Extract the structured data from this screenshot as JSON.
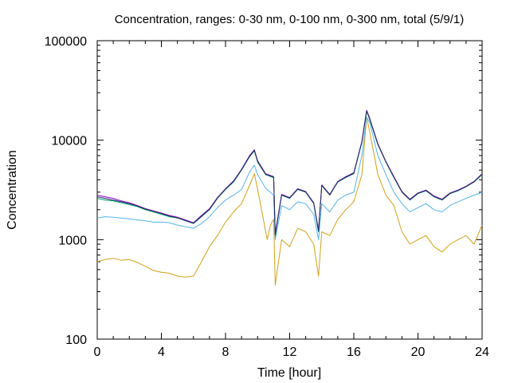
{
  "chart_data": {
    "type": "line",
    "title": "Concentration, ranges: 0-30 nm, 0-100 nm, 0-300 nm, total (5/9/1)",
    "xlabel": "Time [hour]",
    "ylabel": "Concentration",
    "xlim": [
      0,
      24
    ],
    "ylim": [
      100,
      100000
    ],
    "yscale": "log",
    "grid": false,
    "legend": "none",
    "xticks": [
      0,
      4,
      8,
      12,
      16,
      20,
      24
    ],
    "xtick_labels": [
      "0",
      "4",
      "8",
      "12",
      "16",
      "20",
      "24"
    ],
    "yticks": [
      100,
      1000,
      10000,
      100000
    ],
    "ytick_labels": [
      "100",
      "1000",
      "10000",
      "100000"
    ],
    "series": [
      {
        "color": "#d4a017",
        "points": [
          [
            0,
            600
          ],
          [
            0.5,
            630
          ],
          [
            1,
            650
          ],
          [
            1.5,
            620
          ],
          [
            2,
            630
          ],
          [
            2.5,
            590
          ],
          [
            3,
            540
          ],
          [
            3.5,
            490
          ],
          [
            4,
            470
          ],
          [
            4.5,
            460
          ],
          [
            5,
            430
          ],
          [
            5.5,
            420
          ],
          [
            6,
            430
          ],
          [
            6.5,
            600
          ],
          [
            7,
            850
          ],
          [
            7.5,
            1100
          ],
          [
            8,
            1500
          ],
          [
            8.5,
            1900
          ],
          [
            9,
            2300
          ],
          [
            9.5,
            3500
          ],
          [
            9.8,
            4600
          ],
          [
            10,
            3200
          ],
          [
            10.3,
            1800
          ],
          [
            10.6,
            1000
          ],
          [
            10.8,
            1400
          ],
          [
            11,
            1600
          ],
          [
            11.1,
            350
          ],
          [
            11.5,
            1000
          ],
          [
            12,
            850
          ],
          [
            12.5,
            1300
          ],
          [
            13,
            1200
          ],
          [
            13.5,
            900
          ],
          [
            13.8,
            430
          ],
          [
            14,
            1200
          ],
          [
            14.5,
            1100
          ],
          [
            15,
            1600
          ],
          [
            15.5,
            2000
          ],
          [
            16,
            2400
          ],
          [
            16.5,
            4500
          ],
          [
            16.8,
            17000
          ],
          [
            17,
            12000
          ],
          [
            17.5,
            4500
          ],
          [
            18,
            2800
          ],
          [
            18.5,
            2200
          ],
          [
            19,
            1200
          ],
          [
            19.5,
            900
          ],
          [
            20,
            1000
          ],
          [
            20.5,
            1100
          ],
          [
            21,
            850
          ],
          [
            21.5,
            750
          ],
          [
            22,
            900
          ],
          [
            22.5,
            1000
          ],
          [
            23,
            1100
          ],
          [
            23.5,
            900
          ],
          [
            24,
            1400
          ]
        ]
      },
      {
        "color": "#56b4e9",
        "points": [
          [
            0,
            1650
          ],
          [
            0.5,
            1700
          ],
          [
            1,
            1680
          ],
          [
            1.5,
            1650
          ],
          [
            2,
            1620
          ],
          [
            2.5,
            1580
          ],
          [
            3,
            1550
          ],
          [
            3.5,
            1500
          ],
          [
            4,
            1500
          ],
          [
            4.5,
            1480
          ],
          [
            5,
            1400
          ],
          [
            5.5,
            1350
          ],
          [
            6,
            1300
          ],
          [
            6.5,
            1450
          ],
          [
            7,
            1700
          ],
          [
            7.5,
            2100
          ],
          [
            8,
            2500
          ],
          [
            8.5,
            2800
          ],
          [
            9,
            3200
          ],
          [
            9.5,
            4800
          ],
          [
            9.8,
            5600
          ],
          [
            10,
            4500
          ],
          [
            10.5,
            3300
          ],
          [
            11,
            2800
          ],
          [
            11.1,
            1000
          ],
          [
            11.5,
            2200
          ],
          [
            12,
            2000
          ],
          [
            12.5,
            2400
          ],
          [
            13,
            2300
          ],
          [
            13.5,
            1800
          ],
          [
            13.8,
            1000
          ],
          [
            14,
            2300
          ],
          [
            14.5,
            1900
          ],
          [
            15,
            2500
          ],
          [
            15.5,
            2800
          ],
          [
            16,
            3000
          ],
          [
            16.5,
            7000
          ],
          [
            16.8,
            17000
          ],
          [
            17,
            15000
          ],
          [
            17.5,
            7000
          ],
          [
            18,
            4500
          ],
          [
            18.5,
            3000
          ],
          [
            19,
            2300
          ],
          [
            19.5,
            1900
          ],
          [
            20,
            2100
          ],
          [
            20.5,
            2300
          ],
          [
            21,
            2000
          ],
          [
            21.5,
            1900
          ],
          [
            22,
            2200
          ],
          [
            22.5,
            2400
          ],
          [
            23,
            2600
          ],
          [
            23.5,
            2800
          ],
          [
            24,
            3000
          ]
        ]
      },
      {
        "color": "#009e73",
        "points": [
          [
            0,
            2600
          ],
          [
            0.5,
            2500
          ],
          [
            1,
            2450
          ],
          [
            1.5,
            2350
          ],
          [
            2,
            2250
          ],
          [
            2.5,
            2150
          ],
          [
            3,
            2000
          ],
          [
            3.5,
            1900
          ],
          [
            4,
            1800
          ],
          [
            4.5,
            1700
          ],
          [
            5,
            1650
          ],
          [
            5.5,
            1550
          ],
          [
            6,
            1450
          ],
          [
            6.5,
            1700
          ],
          [
            7,
            2000
          ],
          [
            7.5,
            2600
          ],
          [
            8,
            3200
          ],
          [
            8.5,
            3800
          ],
          [
            9,
            5000
          ],
          [
            9.5,
            6800
          ],
          [
            9.8,
            7800
          ],
          [
            10,
            6000
          ],
          [
            10.5,
            4500
          ],
          [
            11,
            4200
          ],
          [
            11.1,
            1100
          ],
          [
            11.5,
            2800
          ],
          [
            12,
            2600
          ],
          [
            12.5,
            3200
          ],
          [
            13,
            3000
          ],
          [
            13.5,
            2300
          ],
          [
            13.8,
            1200
          ],
          [
            14,
            3500
          ],
          [
            14.5,
            2800
          ],
          [
            15,
            3800
          ],
          [
            15.5,
            4200
          ],
          [
            16,
            4600
          ],
          [
            16.5,
            9500
          ],
          [
            16.8,
            19500
          ],
          [
            17,
            16000
          ],
          [
            17.5,
            9000
          ],
          [
            18,
            6000
          ],
          [
            18.5,
            4200
          ],
          [
            19,
            3000
          ],
          [
            19.5,
            2500
          ],
          [
            20,
            2900
          ],
          [
            20.5,
            3100
          ],
          [
            21,
            2700
          ],
          [
            21.5,
            2500
          ],
          [
            22,
            2900
          ],
          [
            22.5,
            3100
          ],
          [
            23,
            3400
          ],
          [
            23.5,
            3800
          ],
          [
            24,
            4500
          ]
        ]
      },
      {
        "color": "#9400d3",
        "points": [
          [
            0,
            2800
          ],
          [
            0.5,
            2700
          ],
          [
            1,
            2600
          ],
          [
            1.5,
            2450
          ],
          [
            2,
            2350
          ],
          [
            2.5,
            2200
          ],
          [
            3,
            2050
          ],
          [
            3.5,
            1950
          ],
          [
            4,
            1850
          ],
          [
            4.5,
            1750
          ],
          [
            5,
            1680
          ],
          [
            5.5,
            1580
          ],
          [
            6,
            1480
          ],
          [
            6.5,
            1750
          ],
          [
            7,
            2050
          ],
          [
            7.5,
            2650
          ],
          [
            8,
            3250
          ],
          [
            8.5,
            3900
          ],
          [
            9,
            5100
          ],
          [
            9.5,
            7000
          ],
          [
            9.8,
            8000
          ],
          [
            10,
            6200
          ],
          [
            10.5,
            4600
          ],
          [
            11,
            4300
          ],
          [
            11.1,
            1150
          ],
          [
            11.5,
            2850
          ],
          [
            12,
            2650
          ],
          [
            12.5,
            3250
          ],
          [
            13,
            3050
          ],
          [
            13.5,
            2350
          ],
          [
            13.8,
            1250
          ],
          [
            14,
            3550
          ],
          [
            14.5,
            2850
          ],
          [
            15,
            3850
          ],
          [
            15.5,
            4300
          ],
          [
            16,
            4700
          ],
          [
            16.5,
            9700
          ],
          [
            16.8,
            20000
          ],
          [
            17,
            16500
          ],
          [
            17.5,
            9200
          ],
          [
            18,
            6100
          ],
          [
            18.5,
            4300
          ],
          [
            19,
            3050
          ],
          [
            19.5,
            2550
          ],
          [
            20,
            2950
          ],
          [
            20.5,
            3150
          ],
          [
            21,
            2750
          ],
          [
            21.5,
            2550
          ],
          [
            22,
            2950
          ],
          [
            22.5,
            3150
          ],
          [
            23,
            3450
          ],
          [
            23.5,
            3850
          ],
          [
            24,
            4600
          ]
        ]
      },
      {
        "color": "#1f2f5f",
        "points": [
          [
            0,
            2700
          ],
          [
            0.5,
            2600
          ],
          [
            1,
            2500
          ],
          [
            1.5,
            2400
          ],
          [
            2,
            2300
          ],
          [
            2.5,
            2180
          ],
          [
            3,
            2030
          ],
          [
            3.5,
            1930
          ],
          [
            4,
            1830
          ],
          [
            4.5,
            1730
          ],
          [
            5,
            1660
          ],
          [
            5.5,
            1560
          ],
          [
            6,
            1460
          ],
          [
            6.5,
            1720
          ],
          [
            7,
            2020
          ],
          [
            7.5,
            2620
          ],
          [
            8,
            3220
          ],
          [
            8.5,
            3850
          ],
          [
            9,
            5050
          ],
          [
            9.5,
            6900
          ],
          [
            9.8,
            7900
          ],
          [
            10,
            6100
          ],
          [
            10.5,
            4550
          ],
          [
            11,
            4250
          ],
          [
            11.1,
            1120
          ],
          [
            11.5,
            2820
          ],
          [
            12,
            2620
          ],
          [
            12.5,
            3220
          ],
          [
            13,
            3020
          ],
          [
            13.5,
            2320
          ],
          [
            13.8,
            1220
          ],
          [
            14,
            3520
          ],
          [
            14.5,
            2820
          ],
          [
            15,
            3820
          ],
          [
            15.5,
            4250
          ],
          [
            16,
            4650
          ],
          [
            16.5,
            9600
          ],
          [
            16.8,
            19700
          ],
          [
            17,
            16200
          ],
          [
            17.5,
            9100
          ],
          [
            18,
            6050
          ],
          [
            18.5,
            4250
          ],
          [
            19,
            3020
          ],
          [
            19.5,
            2520
          ],
          [
            20,
            2920
          ],
          [
            20.5,
            3120
          ],
          [
            21,
            2720
          ],
          [
            21.5,
            2520
          ],
          [
            22,
            2920
          ],
          [
            22.5,
            3120
          ],
          [
            23,
            3420
          ],
          [
            23.5,
            3820
          ],
          [
            24,
            4550
          ]
        ]
      }
    ]
  }
}
